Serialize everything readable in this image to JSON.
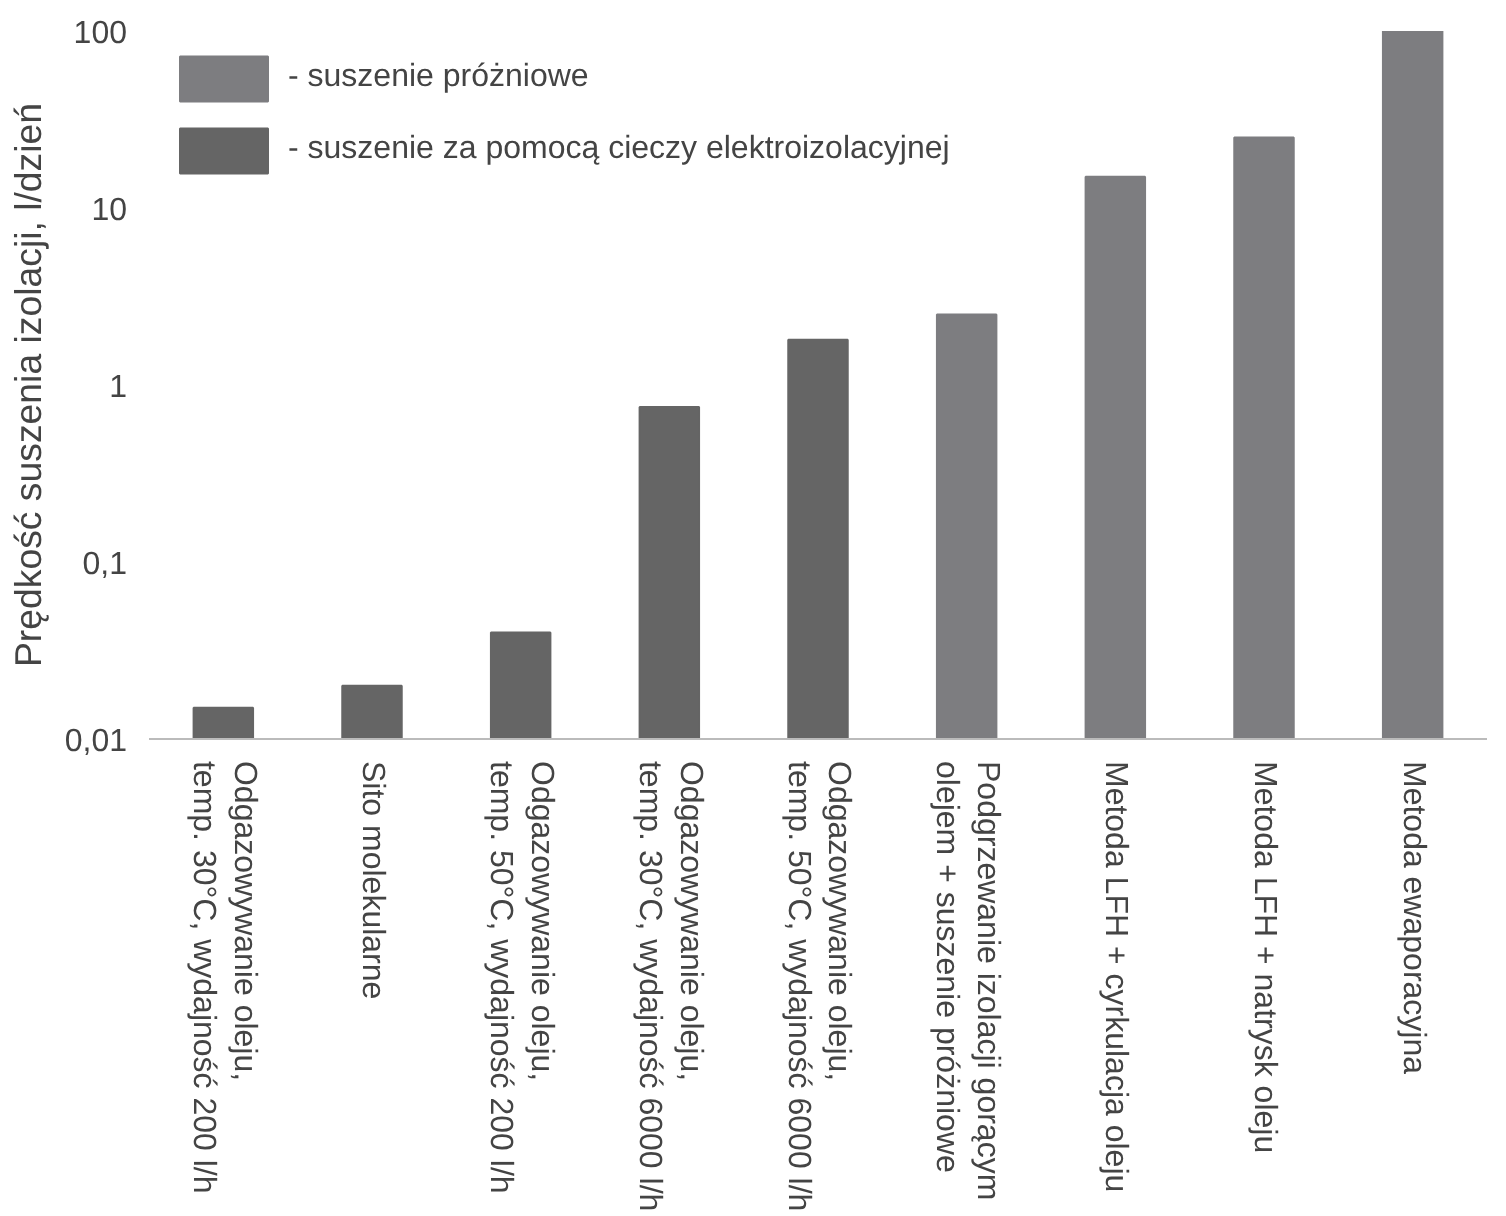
{
  "chart_data": {
    "type": "bar",
    "ylabel": "Prędkość suszenia izolacji, l/dzień",
    "categories": [
      "Odgazowywanie oleju,\ntemp. 30°C, wydajność 200 l/h",
      "Sito molekularne",
      "Odgazowywanie oleju,\ntemp. 50°C, wydajność 200 l/h",
      "Odgazowywanie oleju,\ntemp. 30°C, wydajność 6000 l/h",
      "Odgazowywanie oleju,\ntemp. 50°C, wydajność 6000 l/h",
      "Podgrzewanie izolacji gorącym\nolejem + suszenie próżniowe",
      "Metoda LFH + cyrkulacja oleju",
      "Metoda LFH + natrysk oleju",
      "Metoda ewaporacyjna"
    ],
    "series": [
      {
        "name": "- suszenie próżniowe",
        "color": "#7d7d80",
        "values": [
          null,
          null,
          null,
          null,
          null,
          2.5,
          15,
          25,
          100
        ]
      },
      {
        "name": "- suszenie za pomocą cieczy elektroizolacyjnej",
        "color": "#656565",
        "values": [
          0.015,
          0.02,
          0.04,
          0.75,
          1.8,
          null,
          null,
          null,
          null
        ]
      }
    ],
    "log": "y",
    "ylim": [
      0.01,
      100
    ],
    "yticks": [
      {
        "value": 0.01,
        "label": "0,01"
      },
      {
        "value": 0.1,
        "label": "0,1"
      },
      1,
      10,
      100
    ],
    "grid": false,
    "legend": "top left"
  }
}
